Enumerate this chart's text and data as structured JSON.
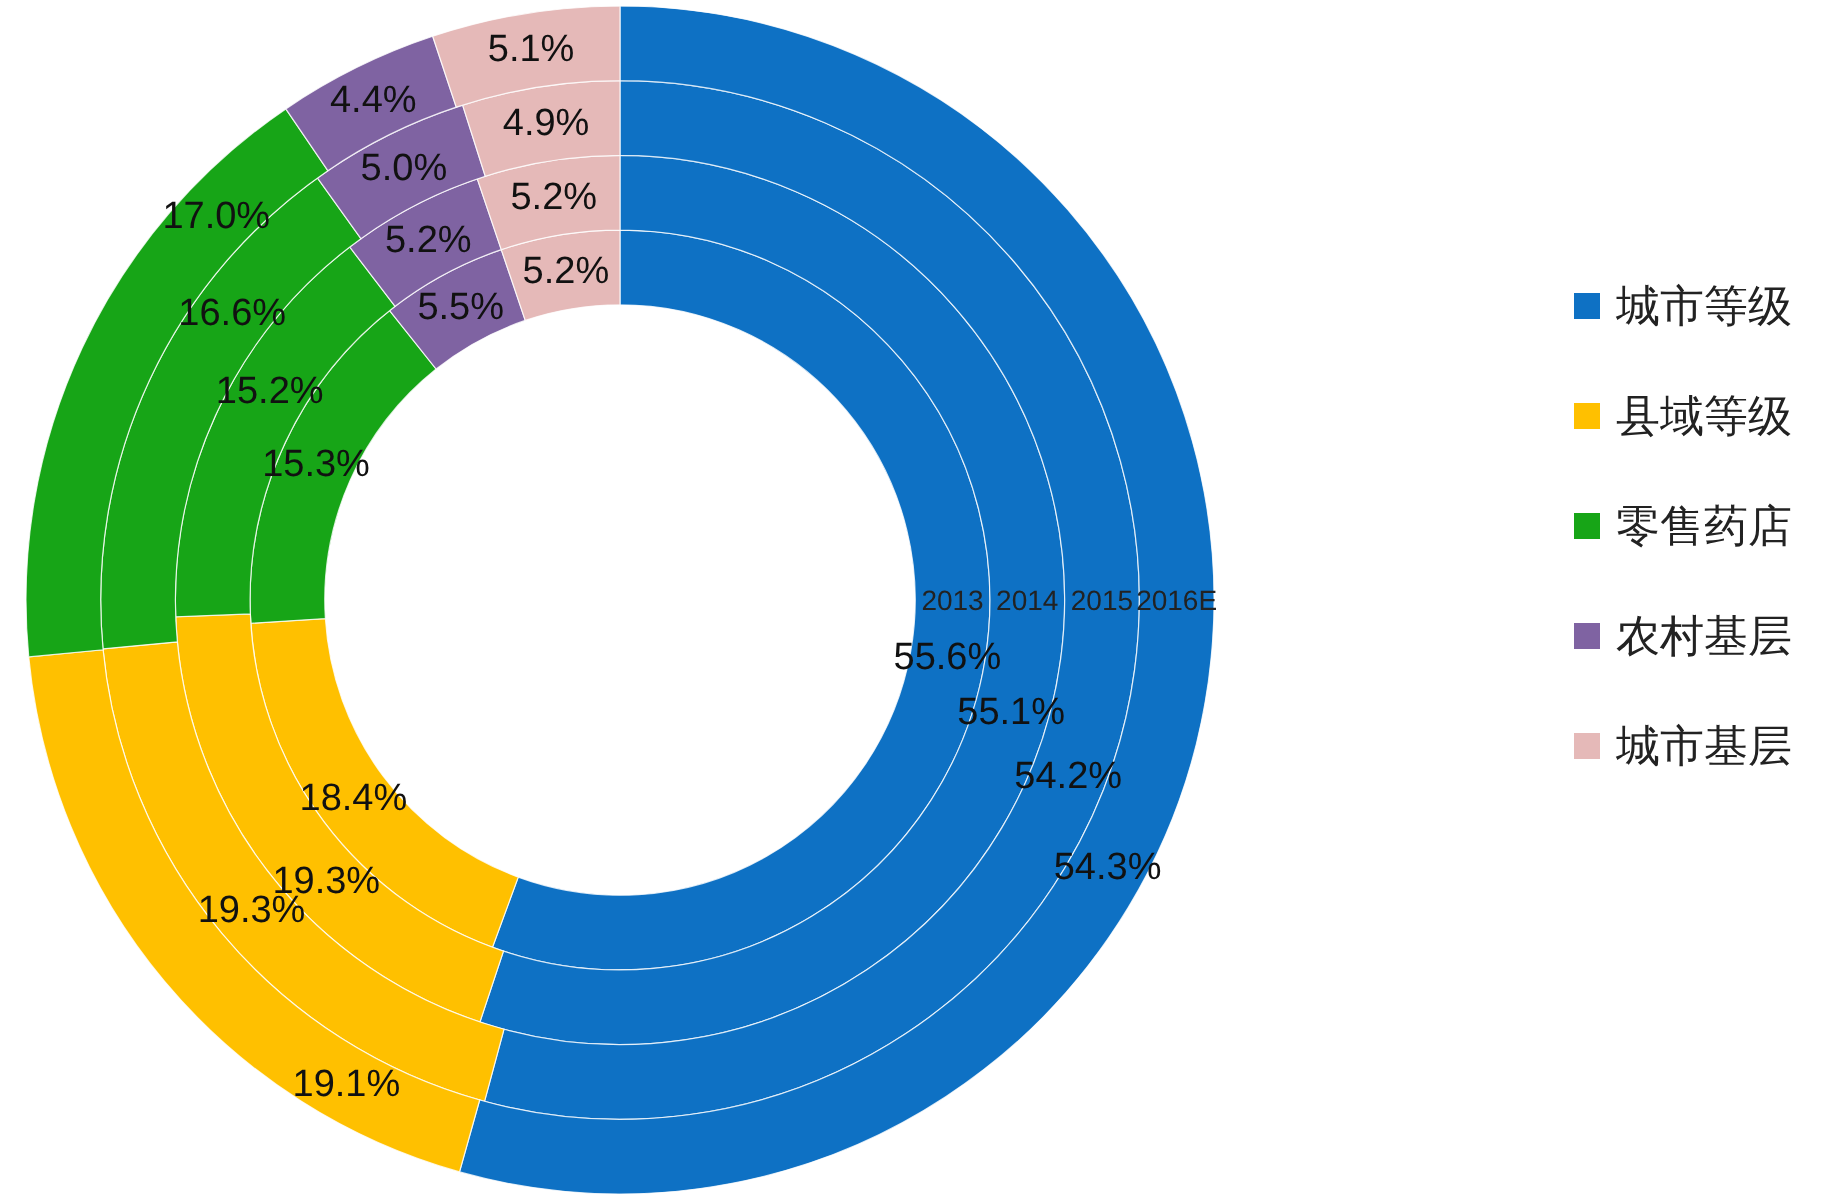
{
  "chart_data": {
    "type": "donut",
    "categories": [
      "城市等级",
      "县域等级",
      "零售药店",
      "农村基层",
      "城市基层"
    ],
    "colors": [
      "#0e71c4",
      "#ffc000",
      "#17a517",
      "#7f63a2",
      "#e5b9b8"
    ],
    "series": [
      {
        "name": "2013",
        "values": [
          55.6,
          18.4,
          15.3,
          5.5,
          5.2
        ],
        "value_labels": [
          "55.6%",
          "18.4%",
          "15.3%",
          "5.5%",
          "5.2%"
        ]
      },
      {
        "name": "2014",
        "values": [
          55.1,
          19.3,
          15.2,
          5.2,
          5.2
        ],
        "value_labels": [
          "55.1%",
          "19.3%",
          "15.2%",
          "5.2%",
          "5.2%"
        ]
      },
      {
        "name": "2015",
        "values": [
          54.2,
          19.3,
          16.6,
          5.0,
          4.9
        ],
        "value_labels": [
          "54.2%",
          "19.3%",
          "16.6%",
          "5.0%",
          "4.9%"
        ]
      },
      {
        "name": "2016E",
        "values": [
          54.3,
          19.1,
          17.0,
          4.4,
          5.1
        ],
        "value_labels": [
          "54.3%",
          "19.1%",
          "17.0%",
          "4.4%",
          "5.1%"
        ]
      }
    ],
    "legend": "right"
  }
}
